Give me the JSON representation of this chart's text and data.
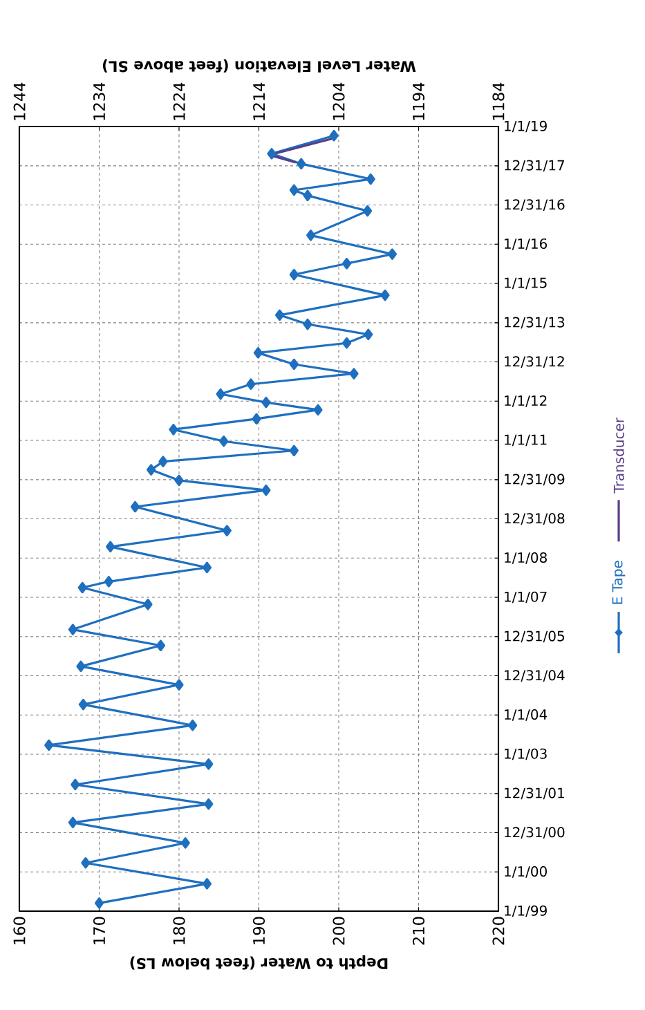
{
  "chart_data": {
    "type": "line",
    "orientation": "horizontal",
    "xlabel": "Depth to Water (feet below LS)",
    "x2label": "Water Level Elevation (feet above SL)",
    "xlim": [
      160,
      220
    ],
    "xticks": [
      160,
      170,
      180,
      190,
      200,
      210,
      220
    ],
    "x2lim": [
      1244,
      1184
    ],
    "x2ticks": [
      1244,
      1234,
      1224,
      1214,
      1204,
      1194,
      1184
    ],
    "ylim": [
      "1999-01-01",
      "2019-01-01"
    ],
    "yticks": [
      {
        "value": "1999-01-01",
        "label": "1/1/99"
      },
      {
        "value": "2000-01-01",
        "label": "1/1/00"
      },
      {
        "value": "2000-12-31",
        "label": "12/31/00"
      },
      {
        "value": "2001-12-31",
        "label": "12/31/01"
      },
      {
        "value": "2003-01-01",
        "label": "1/1/03"
      },
      {
        "value": "2004-01-01",
        "label": "1/1/04"
      },
      {
        "value": "2004-12-31",
        "label": "12/31/04"
      },
      {
        "value": "2005-12-31",
        "label": "12/31/05"
      },
      {
        "value": "2007-01-01",
        "label": "1/1/07"
      },
      {
        "value": "2008-01-01",
        "label": "1/1/08"
      },
      {
        "value": "2008-12-31",
        "label": "12/31/08"
      },
      {
        "value": "2009-12-31",
        "label": "12/31/09"
      },
      {
        "value": "2011-01-01",
        "label": "1/1/11"
      },
      {
        "value": "2012-01-01",
        "label": "1/1/12"
      },
      {
        "value": "2012-12-31",
        "label": "12/31/12"
      },
      {
        "value": "2013-12-31",
        "label": "12/31/13"
      },
      {
        "value": "2015-01-01",
        "label": "1/1/15"
      },
      {
        "value": "2016-01-01",
        "label": "1/1/16"
      },
      {
        "value": "2016-12-31",
        "label": "12/31/16"
      },
      {
        "value": "2017-12-31",
        "label": "12/31/17"
      },
      {
        "value": "2019-01-01",
        "label": "1/1/19"
      }
    ],
    "grid": true,
    "legend": "right",
    "line_style": "solid",
    "series": [
      {
        "name": "E Tape",
        "color": "#1f6fbf",
        "marker": "diamond",
        "x": [
          "1999-03-17",
          "1999-09-13",
          "2000-03-25",
          "2000-09-27",
          "2001-04-05",
          "2001-09-24",
          "2002-03-24",
          "2002-10-01",
          "2003-03-26",
          "2003-09-27",
          "2004-04-08",
          "2004-10-08",
          "2005-03-29",
          "2005-10-09",
          "2006-03-07",
          "2006-10-27",
          "2007-04-01",
          "2007-05-27",
          "2007-10-05",
          "2008-04-16",
          "2008-09-13",
          "2009-04-23",
          "2009-09-24",
          "2009-12-24",
          "2010-04-02",
          "2010-06-18",
          "2010-09-28",
          "2010-12-24",
          "2011-04-12",
          "2011-07-20",
          "2011-10-12",
          "2011-12-20",
          "2012-03-07",
          "2012-06-07",
          "2012-09-13",
          "2012-12-09",
          "2013-03-26",
          "2013-06-25",
          "2013-09-13",
          "2013-12-17",
          "2014-03-12",
          "2014-09-13",
          "2015-03-24",
          "2015-07-05",
          "2015-10-01",
          "2016-03-24",
          "2016-11-06",
          "2017-03-29",
          "2017-05-19",
          "2017-08-29",
          "2018-01-19",
          "2018-04-23",
          "2018-10-08"
        ],
        "values": [
          170.0,
          183.5,
          168.3,
          180.8,
          166.7,
          183.7,
          167.0,
          183.7,
          163.7,
          181.7,
          168.0,
          180.0,
          167.7,
          177.7,
          166.7,
          176.1,
          167.9,
          171.2,
          183.5,
          171.4,
          186.0,
          174.5,
          190.9,
          180.0,
          176.5,
          178.0,
          194.4,
          185.6,
          179.3,
          189.7,
          197.4,
          190.9,
          185.2,
          189.0,
          201.9,
          194.4,
          189.9,
          201.0,
          203.7,
          196.1,
          192.6,
          205.8,
          194.4,
          201.0,
          206.7,
          196.5,
          203.6,
          196.1,
          194.4,
          204.0,
          195.3,
          191.6,
          199.4
        ]
      },
      {
        "name": "Transducer",
        "color": "#5a3d88",
        "marker": "none",
        "x": [
          "2018-02-01",
          "2018-04-10",
          "2018-05-01",
          "2018-09-20"
        ],
        "values": [
          194.6,
          191.3,
          192.4,
          199.7
        ]
      }
    ]
  }
}
